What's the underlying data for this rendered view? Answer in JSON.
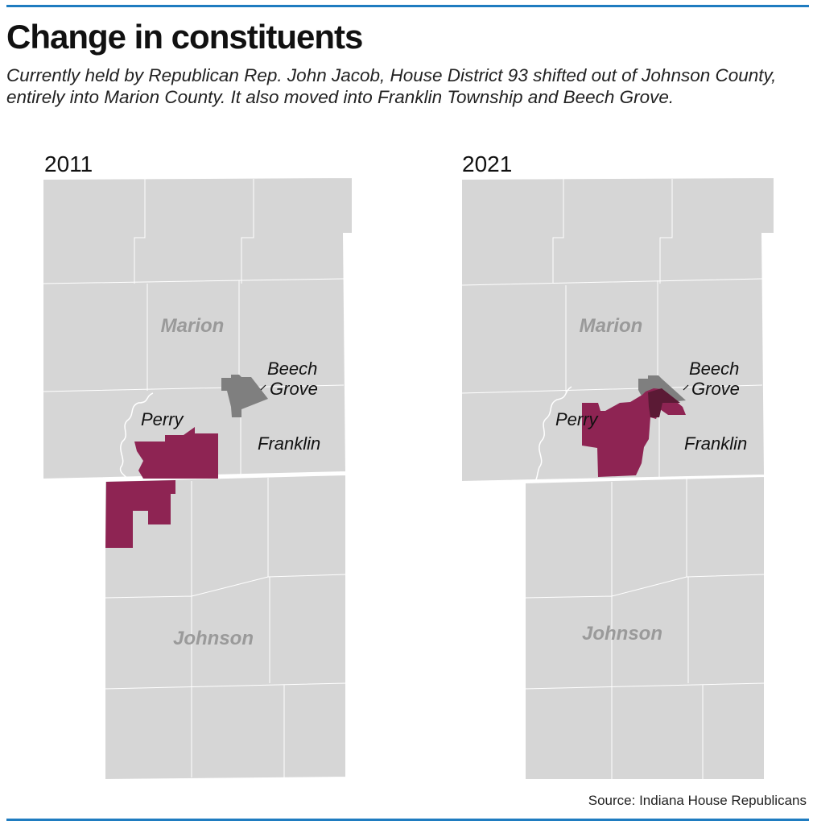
{
  "header": {
    "title": "Change in constituents",
    "subtitle": "Currently held by Republican Rep. John Jacob, House District 93 shifted out of Johnson County, entirely into Marion County. It also moved into Franklin Township and Beech Grove."
  },
  "maps": [
    {
      "year": "2011",
      "labels": {
        "marion": "Marion",
        "johnson": "Johnson",
        "beech": "Beech",
        "grove": "Grove",
        "perry": "Perry",
        "franklin": "Franklin"
      }
    },
    {
      "year": "2021",
      "labels": {
        "marion": "Marion",
        "johnson": "Johnson",
        "beech": "Beech",
        "grove": "Grove",
        "perry": "Perry",
        "franklin": "Franklin"
      }
    }
  ],
  "colors": {
    "district": "#8e2453",
    "beech_grove": "#7f7f7f",
    "overlap": "#5b1a35",
    "county": "#d6d6d6",
    "rule": "#1f7cc0"
  },
  "source": "Source: Indiana House Republicans"
}
